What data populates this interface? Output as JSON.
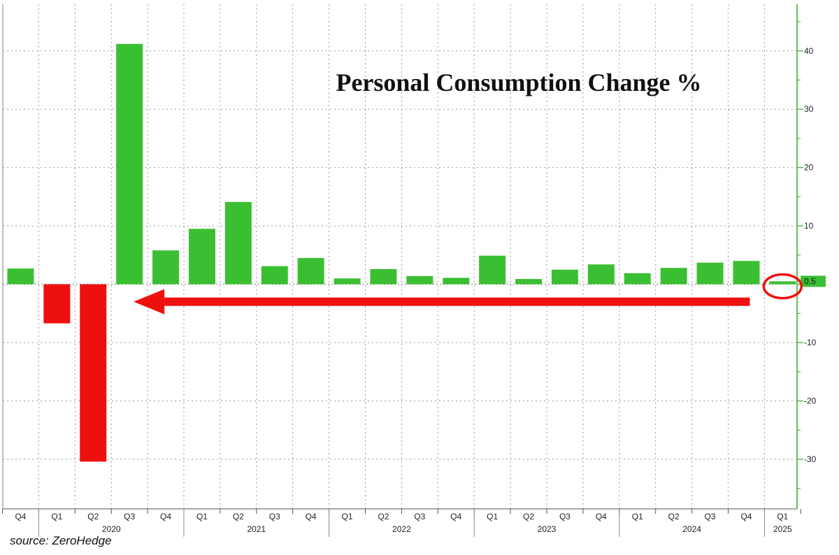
{
  "chart_data": {
    "type": "bar",
    "title": "Personal Consumption Change %",
    "source": "source: ZeroHedge",
    "categories": [
      "Q4",
      "Q1",
      "Q2",
      "Q3",
      "Q4",
      "Q1",
      "Q2",
      "Q3",
      "Q4",
      "Q1",
      "Q2",
      "Q3",
      "Q4",
      "Q1",
      "Q2",
      "Q3",
      "Q4",
      "Q1",
      "Q2",
      "Q3",
      "Q4",
      "Q1"
    ],
    "years": [
      {
        "label": "2020",
        "span": [
          1,
          4
        ]
      },
      {
        "label": "2021",
        "span": [
          5,
          8
        ]
      },
      {
        "label": "2022",
        "span": [
          9,
          12
        ]
      },
      {
        "label": "2023",
        "span": [
          13,
          16
        ]
      },
      {
        "label": "2024",
        "span": [
          17,
          20
        ]
      },
      {
        "label": "2025",
        "span": [
          21,
          21
        ]
      }
    ],
    "values": [
      2.7,
      -6.7,
      -30.4,
      41.2,
      5.8,
      9.5,
      14.1,
      3.1,
      4.5,
      1.0,
      2.6,
      1.4,
      1.1,
      4.9,
      0.9,
      2.5,
      3.4,
      1.9,
      2.8,
      3.7,
      4.0,
      0.5
    ],
    "last_value_label": "0.5",
    "ylim": [
      -38.5,
      48
    ],
    "yticks": [
      -30,
      -20,
      -10,
      0,
      10,
      20,
      30,
      40
    ],
    "ytick_labels": [
      "-30",
      "-20",
      "-10",
      "",
      "10",
      "20",
      "30",
      "40"
    ],
    "grid": true,
    "colors": {
      "positive": "#3bbf32",
      "negative": "#ee0f0f",
      "arrow": "#ee0f0f",
      "grid": "#9a9a9a",
      "axis_green": "#2fae26"
    },
    "annotation": {
      "type": "arrow",
      "from_category": 20,
      "to_category": 3,
      "circle_category": 21
    }
  }
}
